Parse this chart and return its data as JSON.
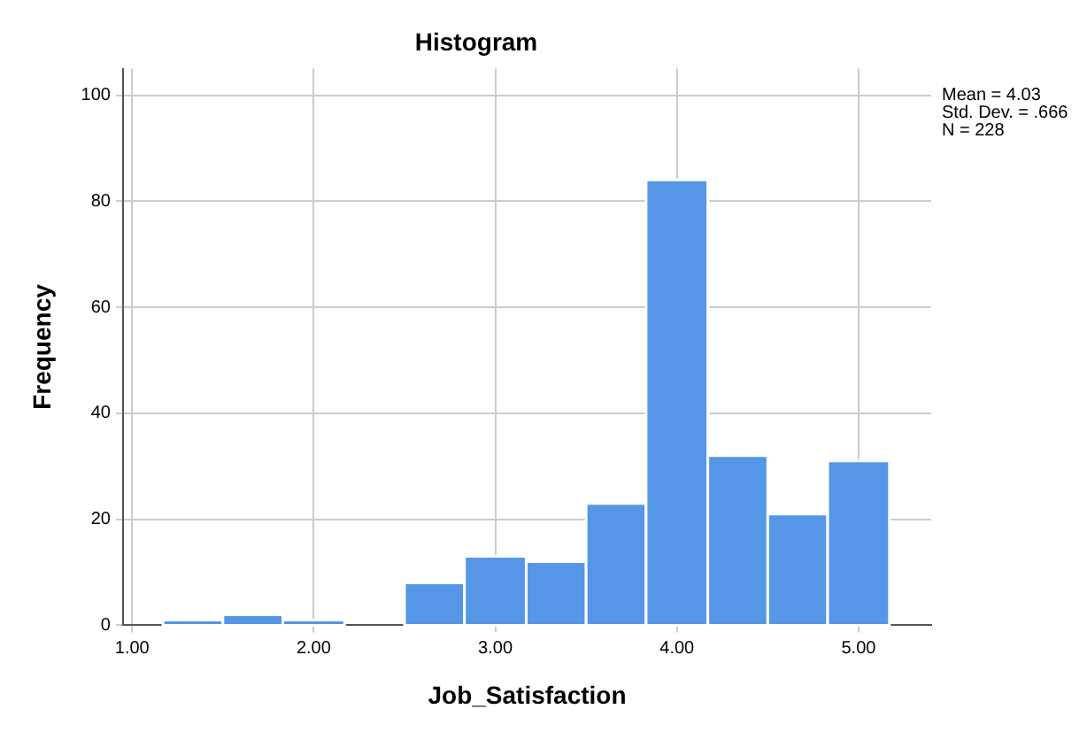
{
  "chart_data": {
    "type": "histogram",
    "title": "Histogram",
    "xlabel": "Job_Satisfaction",
    "ylabel": "Frequency",
    "bins": [
      1.17,
      1.5,
      1.83,
      2.17,
      2.5,
      2.83,
      3.17,
      3.5,
      3.83,
      4.17,
      4.5,
      4.83,
      5.17
    ],
    "values": [
      1,
      2,
      1,
      0,
      8,
      13,
      12,
      23,
      84,
      32,
      21,
      31
    ],
    "color": "#5596e6",
    "xlim": [
      0.95,
      5.4
    ],
    "xticks": [
      {
        "value": 1,
        "label": "1.00"
      },
      {
        "value": 2,
        "label": "2.00"
      },
      {
        "value": 3,
        "label": "3.00"
      },
      {
        "value": 4,
        "label": "4.00"
      },
      {
        "value": 5,
        "label": "5.00"
      }
    ],
    "ylim": [
      0,
      105
    ],
    "yticks": [
      0,
      20,
      40,
      60,
      80,
      100
    ],
    "grid": true,
    "annotations": [
      "Mean = 4.03",
      "Std. Dev. = .666",
      "N = 228"
    ]
  }
}
